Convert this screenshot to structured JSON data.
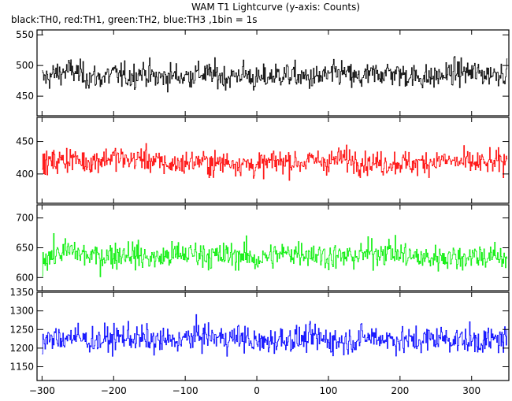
{
  "chart_data": {
    "type": "line",
    "title": "WAM T1 Lightcurve (y-axis: Counts)",
    "subtitle": "black:TH0, red:TH1, green:TH2, blue:TH3 ,1bin = 1s",
    "xlabel": "",
    "ylabel": "",
    "xlim": [
      -307,
      352
    ],
    "x_ticks": [
      -300,
      -200,
      -100,
      0,
      100,
      200,
      300
    ],
    "grid": false,
    "legend": "none",
    "series": [
      {
        "color": "#000000",
        "ylim": [
          418,
          558
        ],
        "y_ticks": [
          450,
          500,
          550
        ],
        "mean": 484,
        "sd": 20,
        "x": [
          -300,
          -280,
          -260,
          -240,
          -220,
          -200,
          -180,
          -160,
          -140,
          -120,
          -100,
          -80,
          -60,
          -40,
          -20,
          0,
          20,
          40,
          60,
          80,
          100,
          120,
          140,
          160,
          180,
          200,
          220,
          240,
          260,
          280,
          300,
          320,
          340
        ],
        "y": [
          478,
          487,
          492,
          483,
          480,
          486,
          481,
          490,
          479,
          484,
          482,
          487,
          485,
          480,
          488,
          476,
          483,
          486,
          481,
          479,
          484,
          488,
          478,
          485,
          489,
          486,
          482,
          480,
          484,
          490,
          488,
          486,
          489
        ]
      },
      {
        "color": "#ff0000",
        "ylim": [
          355,
          487
        ],
        "y_ticks": [
          400,
          450
        ],
        "mean": 418,
        "sd": 18,
        "x": [
          -300,
          -280,
          -260,
          -240,
          -220,
          -200,
          -180,
          -160,
          -140,
          -120,
          -100,
          -80,
          -60,
          -40,
          -20,
          0,
          20,
          40,
          60,
          80,
          100,
          120,
          140,
          160,
          180,
          200,
          220,
          240,
          260,
          280,
          300,
          320,
          340
        ],
        "y": [
          416,
          420,
          424,
          418,
          422,
          426,
          421,
          425,
          418,
          414,
          417,
          420,
          415,
          419,
          416,
          412,
          418,
          420,
          417,
          421,
          419,
          424,
          420,
          417,
          416,
          418,
          415,
          419,
          421,
          418,
          417,
          416,
          418
        ]
      },
      {
        "color": "#00ee00",
        "ylim": [
          578,
          722
        ],
        "y_ticks": [
          600,
          650,
          700
        ],
        "mean": 636,
        "sd": 22,
        "x": [
          -300,
          -280,
          -260,
          -240,
          -220,
          -200,
          -180,
          -160,
          -140,
          -120,
          -100,
          -80,
          -60,
          -40,
          -20,
          0,
          20,
          40,
          60,
          80,
          100,
          120,
          140,
          160,
          180,
          200,
          220,
          240,
          260,
          280,
          300,
          320,
          340
        ],
        "y": [
          633,
          640,
          645,
          637,
          635,
          638,
          642,
          634,
          632,
          637,
          639,
          641,
          635,
          637,
          638,
          630,
          636,
          640,
          644,
          639,
          636,
          634,
          637,
          641,
          645,
          639,
          634,
          632,
          636,
          633,
          637,
          636,
          634
        ]
      },
      {
        "color": "#0000ff",
        "ylim": [
          1113,
          1350
        ],
        "y_ticks": [
          1150,
          1200,
          1250,
          1300,
          1350
        ],
        "mean": 1222,
        "sd": 35,
        "x": [
          -300,
          -280,
          -260,
          -240,
          -220,
          -200,
          -180,
          -160,
          -140,
          -120,
          -100,
          -80,
          -60,
          -40,
          -20,
          0,
          20,
          40,
          60,
          80,
          100,
          120,
          140,
          160,
          180,
          200,
          220,
          240,
          260,
          280,
          300,
          320,
          340
        ],
        "y": [
          1215,
          1225,
          1232,
          1222,
          1220,
          1226,
          1231,
          1224,
          1218,
          1220,
          1223,
          1236,
          1228,
          1225,
          1230,
          1212,
          1220,
          1226,
          1223,
          1228,
          1222,
          1218,
          1224,
          1230,
          1226,
          1221,
          1218,
          1225,
          1228,
          1222,
          1220,
          1219,
          1224
        ]
      }
    ]
  }
}
